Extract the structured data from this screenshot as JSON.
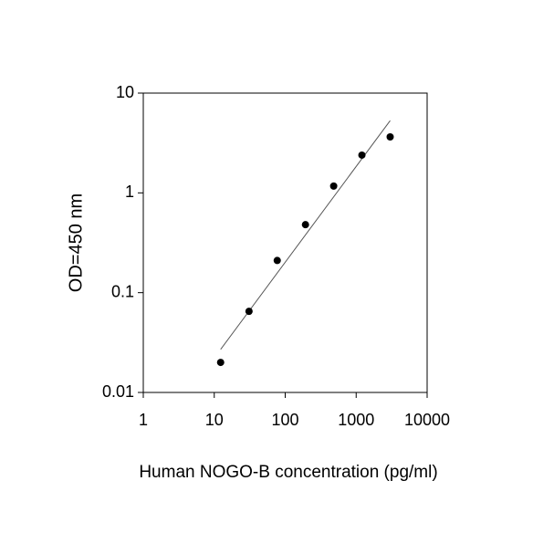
{
  "chart_data": {
    "type": "scatter",
    "x_label": "Human NOGO-B concentration (pg/ml)",
    "y_label": "OD=450 nm",
    "x": [
      12.3,
      30.9,
      77.2,
      193,
      482,
      1205,
      3013
    ],
    "values": [
      0.02,
      0.065,
      0.21,
      0.48,
      1.17,
      2.39,
      3.64
    ],
    "color": "#000000",
    "fit": {
      "x": [
        12.3,
        3013
      ],
      "values": [
        0.027,
        5.3
      ],
      "color": "#555555"
    },
    "xlim": [
      1,
      10000
    ],
    "ylim": [
      0.01,
      10
    ],
    "xticks": [
      1,
      10,
      100,
      1000,
      10000
    ],
    "yticks": [
      0.01,
      0.1,
      1,
      10
    ],
    "log_x": true,
    "log_y": true,
    "grid": false
  }
}
